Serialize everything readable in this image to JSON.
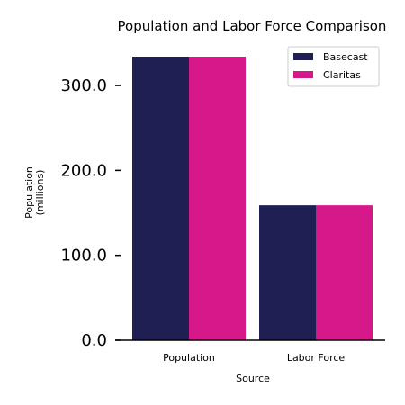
{
  "chart_data": {
    "type": "bar",
    "title": "Population and Labor Force Comparison",
    "xlabel": "Source",
    "ylabel": "Population\n(millions)",
    "categories": [
      "Population",
      "Labor Force"
    ],
    "series": [
      {
        "name": "Basecast",
        "color": "#1f1f54",
        "values": [
          334.0,
          158.9
        ]
      },
      {
        "name": "Claritas",
        "color": "#d6198a",
        "values": [
          334.0,
          158.9
        ]
      }
    ],
    "ylim": [
      0,
      334.0
    ],
    "yticks": [
      0,
      100,
      200,
      300
    ],
    "ytick_labels": [
      "0.0",
      "100.0",
      "200.0",
      "300.0"
    ],
    "grid": false,
    "legend_position": "top-right"
  }
}
